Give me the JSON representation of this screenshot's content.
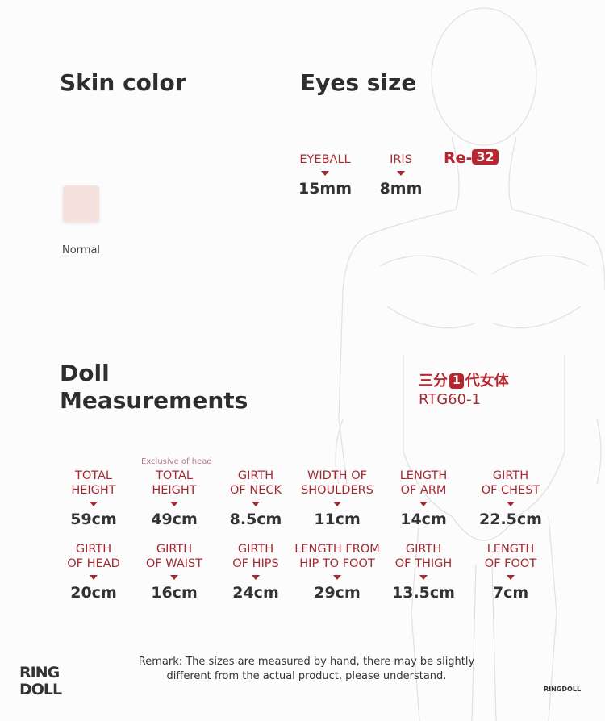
{
  "skin": {
    "title": "Skin color",
    "swatch_color": "#f5e2dc",
    "swatch_label": "Normal"
  },
  "eyes": {
    "title": "Eyes size",
    "items": [
      {
        "label": "EYEBALL",
        "value": "15mm"
      },
      {
        "label": "IRIS",
        "value": "8mm"
      }
    ],
    "code_prefix": "Re-",
    "code_number": "32"
  },
  "doll": {
    "title_line1": "Doll",
    "title_line2": "Measurements",
    "cn_before": "三分",
    "cn_badge": "1",
    "cn_after": "代女体",
    "model": "RTG60-1"
  },
  "measurements": {
    "note": "Exclusive of head",
    "row1": [
      {
        "l1": "TOTAL",
        "l2": "HEIGHT",
        "value": "59cm"
      },
      {
        "l1": "TOTAL",
        "l2": "HEIGHT",
        "value": "49cm"
      },
      {
        "l1": "GIRTH",
        "l2": "OF NECK",
        "value": "8.5cm"
      },
      {
        "l1": "WIDTH OF",
        "l2": "SHOULDERS",
        "value": "11cm"
      },
      {
        "l1": "LENGTH",
        "l2": "OF ARM",
        "value": "14cm"
      },
      {
        "l1": "GIRTH",
        "l2": "OF CHEST",
        "value": "22.5cm"
      }
    ],
    "row2": [
      {
        "l1": "GIRTH",
        "l2": "OF HEAD",
        "value": "20cm"
      },
      {
        "l1": "GIRTH",
        "l2": "OF WAIST",
        "value": "16cm"
      },
      {
        "l1": "GIRTH",
        "l2": "OF HIPS",
        "value": "24cm"
      },
      {
        "l1": "LENGTH FROM",
        "l2": "HIP TO FOOT",
        "value": "29cm"
      },
      {
        "l1": "GIRTH",
        "l2": "OF THIGH",
        "value": "13.5cm"
      },
      {
        "l1": "LENGTH",
        "l2": "OF FOOT",
        "value": "7cm"
      }
    ]
  },
  "footer": {
    "remark_line1": "Remark: The sizes are measured by hand, there may be slightly",
    "remark_line2": "different from the actual product, please understand.",
    "logo_line1": "RING",
    "logo_line2": "DOLL",
    "brand": "RINGDOLL"
  },
  "colors": {
    "accent": "#a32a33",
    "text": "#333333"
  }
}
